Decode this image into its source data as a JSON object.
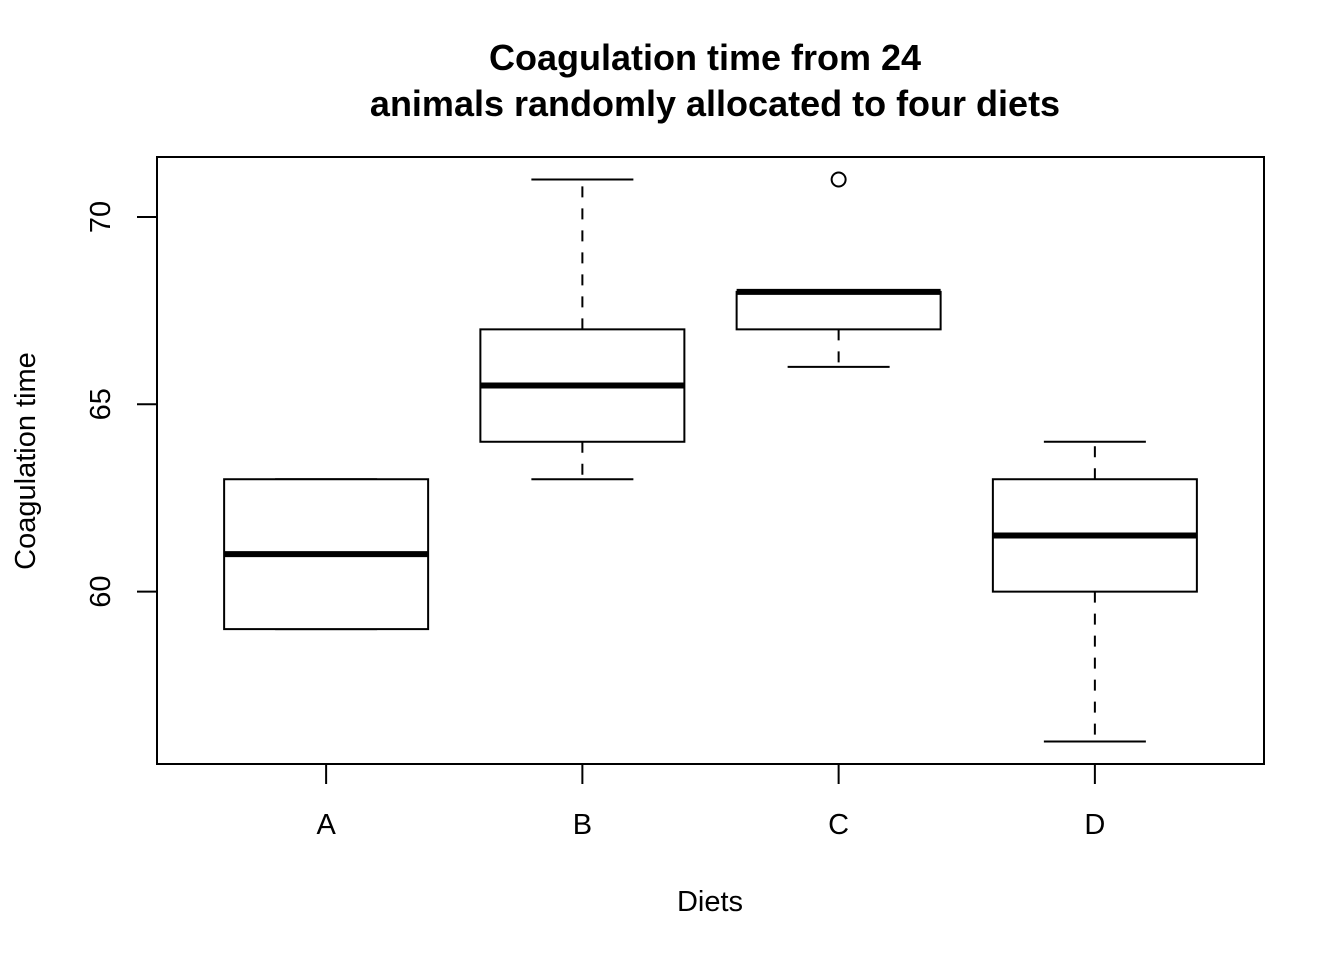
{
  "chart_data": {
    "type": "boxplot",
    "title_lines": [
      "Coagulation time from 24",
      "animals randomly allocated to four diets"
    ],
    "xlabel": "Diets",
    "ylabel": "Coagulation time",
    "categories": [
      "A",
      "B",
      "C",
      "D"
    ],
    "boxes": [
      {
        "category": "A",
        "whisker_low": 59,
        "q1": 59,
        "median": 61,
        "q3": 63,
        "whisker_high": 63,
        "outliers": []
      },
      {
        "category": "B",
        "whisker_low": 63,
        "q1": 64,
        "median": 65.5,
        "q3": 67,
        "whisker_high": 71,
        "outliers": []
      },
      {
        "category": "C",
        "whisker_low": 66,
        "q1": 67,
        "median": 68,
        "q3": 68,
        "whisker_high": 68,
        "outliers": [
          71
        ]
      },
      {
        "category": "D",
        "whisker_low": 56,
        "q1": 60,
        "median": 61.5,
        "q3": 63,
        "whisker_high": 64,
        "outliers": []
      }
    ],
    "y_ticks": [
      60,
      65,
      70
    ],
    "ylim": [
      55.4,
      71.6
    ],
    "grid": false,
    "legend": "none"
  }
}
